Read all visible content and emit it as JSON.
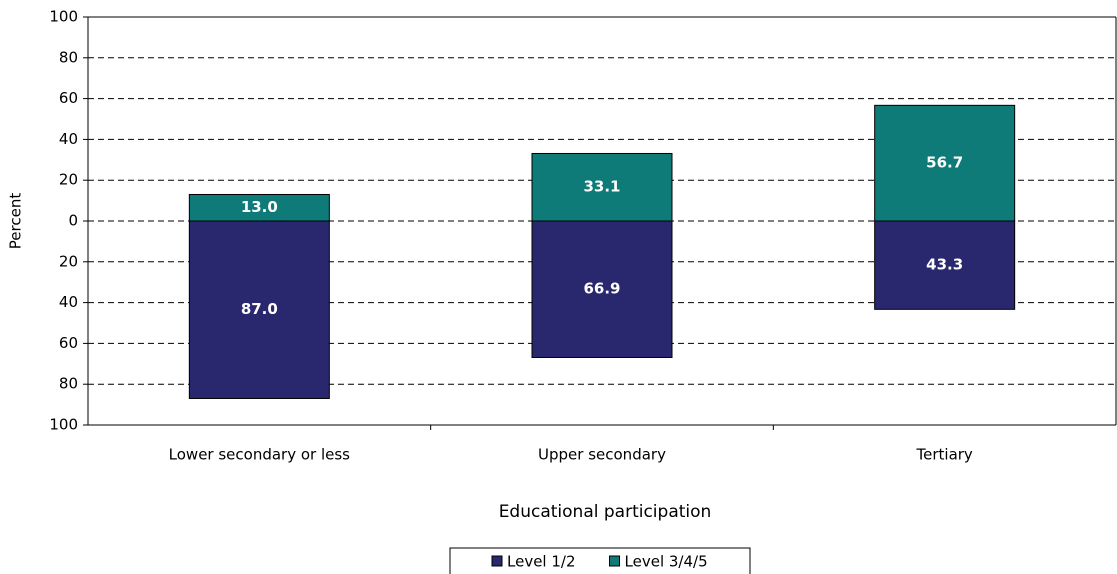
{
  "chart_data": {
    "type": "bar",
    "stacked": true,
    "y_label": "Percent",
    "x_label": "Educational participation",
    "categories": [
      "Lower secondary or less",
      "Upper secondary",
      "Tertiary"
    ],
    "series": [
      {
        "name": "Level 1/2",
        "color": "#29286e",
        "values": [
          -87.0,
          -66.9,
          -43.3
        ],
        "value_labels": [
          "87.0",
          "66.9",
          "43.3"
        ]
      },
      {
        "name": "Level 3/4/5",
        "color": "#0e7b78",
        "values": [
          13.0,
          33.1,
          56.7
        ],
        "value_labels": [
          "13.0",
          "33.1",
          "56.7"
        ]
      }
    ],
    "ylim": [
      -100,
      100
    ],
    "yticks": [
      {
        "value": -100,
        "label": "100"
      },
      {
        "value": -80,
        "label": "80"
      },
      {
        "value": -60,
        "label": "60"
      },
      {
        "value": -40,
        "label": "40"
      },
      {
        "value": -20,
        "label": "20"
      },
      0,
      20,
      40,
      60,
      80,
      100
    ],
    "grid": true,
    "legend": "bottom"
  }
}
